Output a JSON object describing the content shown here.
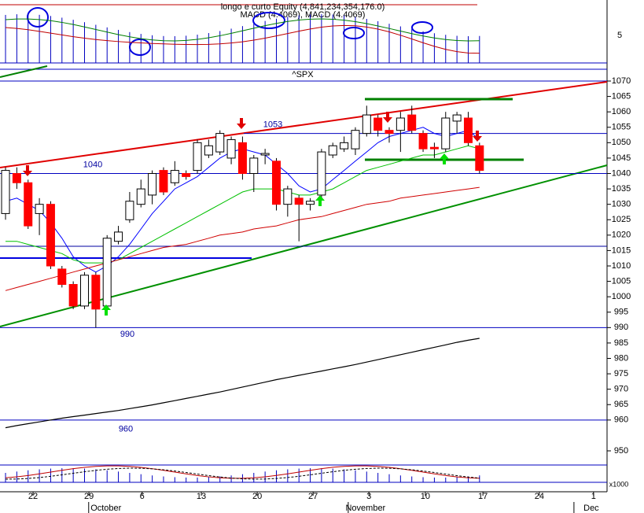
{
  "header": {
    "title": "longo e curto Equity (4,841,234,354,176.0)",
    "subtitle": "MACD (4.4069), MACD (4.4069)",
    "macd_tick": "5"
  },
  "chart_data": {
    "type": "candlestick",
    "title": "^SPX",
    "open": [
      1027,
      1040,
      1037,
      1027,
      1030,
      1009,
      1004,
      997,
      1007,
      997,
      1018,
      1025,
      1030,
      1033,
      1041,
      1037,
      1040,
      1041,
      1046,
      1047,
      1045,
      1050,
      1040,
      1046,
      1044,
      1030,
      1032,
      1030,
      1033,
      1046,
      1048,
      1048,
      1053,
      1058,
      1054,
      1054,
      1059,
      1053,
      1048.5,
      1048,
      1057,
      1058,
      1049
    ],
    "high": [
      1042,
      1042,
      1038,
      1032,
      1031,
      1010,
      1005,
      1008,
      1008,
      1020,
      1023,
      1034,
      1038,
      1041,
      1042,
      1044,
      1041,
      1051,
      1051,
      1054,
      1052,
      1052,
      1046,
      1048,
      1045,
      1036,
      1033,
      1032,
      1048,
      1050,
      1052,
      1055,
      1062,
      1059,
      1055,
      1060,
      1062,
      1054,
      1050,
      1060,
      1060,
      1060,
      1050
    ],
    "low": [
      1025,
      1035,
      1022,
      1020,
      1009,
      1003,
      996,
      996,
      990,
      996,
      1017,
      1024,
      1029,
      1030,
      1033,
      1036,
      1038,
      1040,
      1045,
      1046,
      1043,
      1038,
      1034,
      1043,
      1028,
      1026,
      1018,
      1028,
      1032,
      1045,
      1047,
      1046,
      1052,
      1052,
      1050,
      1047,
      1053,
      1047,
      1045,
      1047,
      1053,
      1049,
      1040
    ],
    "close": [
      1041,
      1037,
      1023,
      1030,
      1010,
      1004,
      997,
      1007,
      996,
      1019,
      1021,
      1031,
      1035,
      1040,
      1034,
      1041,
      1039,
      1050,
      1049,
      1053,
      1051,
      1040,
      1045,
      1046.5,
      1030,
      1035,
      1030,
      1031,
      1047,
      1049,
      1050,
      1054,
      1059,
      1054,
      1053,
      1058,
      1054,
      1048,
      1048,
      1058,
      1059,
      1050,
      1041
    ],
    "overlays": [
      {
        "color": "#0000ff",
        "values": [
          1031,
          1032,
          1030,
          1028,
          1024,
          1019,
          1013,
          1010,
          1008,
          1010,
          1013,
          1017,
          1022,
          1027,
          1031,
          1035,
          1037,
          1039,
          1042,
          1045,
          1047,
          1048,
          1047,
          1046,
          1043,
          1040,
          1036,
          1034,
          1035,
          1038,
          1041,
          1044,
          1047,
          1050,
          1052,
          1053,
          1054,
          1055,
          1053,
          1052,
          1053,
          1054,
          1051
        ]
      },
      {
        "color": "#00c000",
        "values": [
          1018,
          1018,
          1017,
          1016,
          1015,
          1014,
          1012,
          1011,
          1011,
          1011,
          1012,
          1014,
          1016,
          1018,
          1020,
          1022,
          1024,
          1026,
          1028,
          1030,
          1032,
          1034,
          1035,
          1035,
          1035,
          1034,
          1033,
          1033,
          1034,
          1035,
          1037,
          1039,
          1041,
          1042,
          1043,
          1044,
          1045,
          1046,
          1046,
          1047,
          1048,
          1049,
          1048
        ]
      },
      {
        "color": "#d00000",
        "values": [
          1002,
          1003,
          1004,
          1005,
          1006,
          1007,
          1008,
          1009,
          1010,
          1011,
          1012,
          1013,
          1014,
          1015,
          1016,
          1016.5,
          1017,
          1018,
          1019,
          1020,
          1020.5,
          1021,
          1022,
          1022.5,
          1023,
          1024,
          1025,
          1025.5,
          1026,
          1027,
          1028,
          1029,
          1030,
          1030.5,
          1031,
          1032,
          1032.5,
          1033,
          1033.5,
          1034,
          1034.5,
          1035,
          1035.5
        ]
      }
    ],
    "equity": {
      "color": "#000000",
      "values": [
        957.5,
        958.2,
        958.8,
        959.4,
        960,
        960.6,
        961.1,
        961.6,
        962.1,
        962.6,
        963.1,
        963.7,
        964.3,
        964.9,
        965.6,
        966.3,
        967,
        967.7,
        968.4,
        969.1,
        969.9,
        970.7,
        971.5,
        972.3,
        973.1,
        973.8,
        974.5,
        975.2,
        975.9,
        976.6,
        977.3,
        978,
        978.8,
        979.6,
        980.4,
        981.2,
        982,
        982.8,
        983.6,
        984.4,
        985.2,
        985.9,
        986.5
      ]
    },
    "levels": [
      1040,
      1053,
      990,
      960
    ],
    "ylim": [
      950,
      1070
    ],
    "yticks": [
      1070,
      1065,
      1060,
      1055,
      1050,
      1045,
      1040,
      1035,
      1030,
      1025,
      1020,
      1015,
      1010,
      1005,
      1000,
      995,
      990,
      985,
      980,
      975,
      970,
      965,
      960,
      950
    ],
    "y_scale_label": "x1000",
    "xlim": [
      -0.49,
      53.3
    ],
    "xticks": [
      {
        "value": 2.44,
        "label": "22"
      },
      {
        "value": 7.39,
        "label": "29"
      },
      {
        "value": 12.1,
        "label": "6"
      },
      {
        "value": 17.35,
        "label": "13"
      },
      {
        "value": 22.3,
        "label": "20"
      },
      {
        "value": 27.25,
        "label": "27"
      },
      {
        "value": 32.2,
        "label": "3"
      },
      {
        "value": 37.2,
        "label": "10"
      },
      {
        "value": 42.3,
        "label": "17"
      },
      {
        "value": 47.3,
        "label": "24"
      },
      {
        "value": 52.1,
        "label": "1"
      }
    ],
    "month_ticks": [
      {
        "value": 8.9,
        "label": "October"
      },
      {
        "value": 31.9,
        "label": "November"
      },
      {
        "value": 51.9,
        "label": "Dec"
      }
    ],
    "up_color": "#ffffff",
    "down_color": "#ff0000"
  }
}
